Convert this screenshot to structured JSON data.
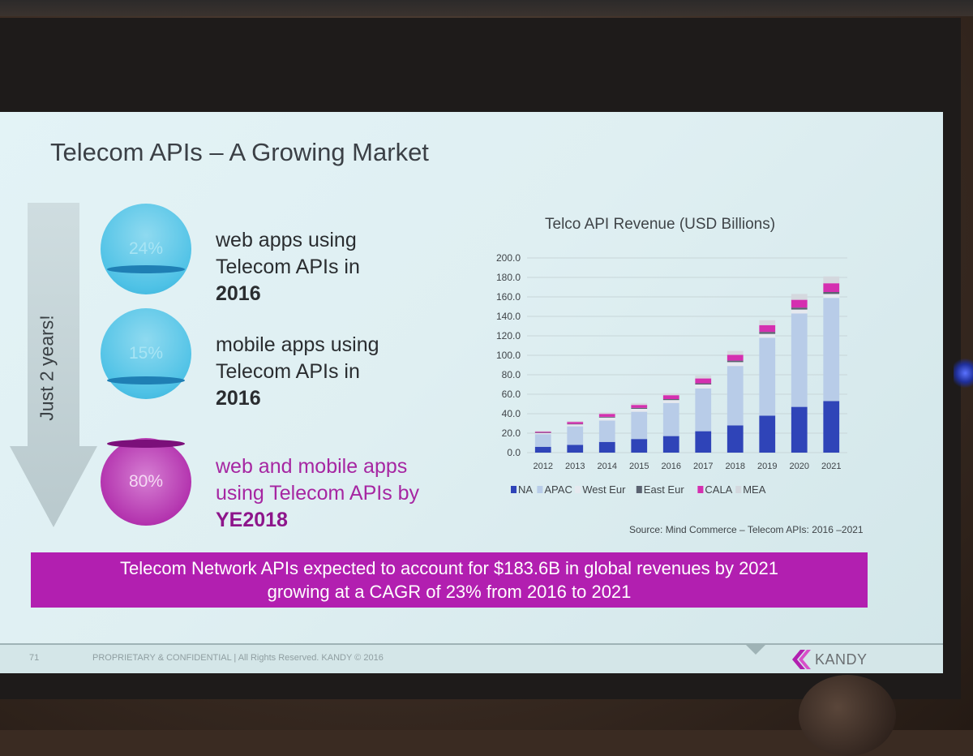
{
  "slide": {
    "title": "Telecom APIs – A Growing Market",
    "arrow_label": "Just 2 years!",
    "stats": [
      {
        "percent": "24%",
        "text_line1": "web apps using",
        "text_line2": "Telecom APIs in",
        "text_bold": "2016",
        "color": "#4fc2e6"
      },
      {
        "percent": "15%",
        "text_line1": "mobile apps using",
        "text_line2": "Telecom APIs in",
        "text_bold": "2016",
        "color": "#4fc2e6"
      },
      {
        "percent": "80%",
        "text_line1": "web and mobile apps",
        "text_line2": "using Telecom APIs by",
        "text_bold": "YE2018",
        "color": "#b333ae"
      }
    ],
    "banner": {
      "line1": "Telecom Network APIs expected to account for $183.6B in global revenues by 2021",
      "line2": "growing at a CAGR of 23% from 2016 to 2021",
      "color": "#b21fb0"
    },
    "source": "Source: Mind Commerce – Telecom APIs: 2016 –2021",
    "footer": {
      "page_number": "71",
      "confidential": "PROPRIETARY & CONFIDENTIAL | All Rights Reserved. KANDY © 2016",
      "logo_text": "KANDY",
      "logo_icon": "kandy-logo-icon"
    }
  },
  "chart_data": {
    "type": "bar",
    "stacked": true,
    "title": "Telco API Revenue (USD Billions)",
    "categories": [
      "2012",
      "2013",
      "2014",
      "2015",
      "2016",
      "2017",
      "2018",
      "2019",
      "2020",
      "2021"
    ],
    "ylim": [
      0,
      200
    ],
    "yticks": [
      "0.0",
      "20.0",
      "40.0",
      "60.0",
      "80.0",
      "100.0",
      "120.0",
      "140.0",
      "160.0",
      "180.0",
      "200.0"
    ],
    "legend_position": "bottom",
    "grid": true,
    "series": [
      {
        "name": "NA",
        "color": "#2f44b8",
        "values": [
          6,
          8,
          11,
          14,
          17,
          22,
          28,
          38,
          47,
          53
        ]
      },
      {
        "name": "APAC",
        "color": "#b8cce8",
        "values": [
          13,
          19,
          22,
          28,
          34,
          44,
          61,
          80,
          96,
          106
        ]
      },
      {
        "name": "West Eur",
        "color": "#e6e9ef",
        "values": [
          1,
          2,
          3,
          3,
          3,
          4,
          4,
          4,
          4,
          4
        ]
      },
      {
        "name": "East Eur",
        "color": "#5a6270",
        "values": [
          0.5,
          0.5,
          0.8,
          1,
          1,
          1.2,
          1.5,
          2,
          2,
          2
        ]
      },
      {
        "name": "CALA",
        "color": "#d52fb0",
        "values": [
          1,
          2,
          3,
          3,
          4,
          5,
          6,
          7,
          8,
          9
        ]
      },
      {
        "name": "MEA",
        "color": "#d4d8de",
        "values": [
          1,
          1,
          1.5,
          2,
          2,
          3,
          4,
          5,
          6,
          7
        ]
      }
    ]
  }
}
